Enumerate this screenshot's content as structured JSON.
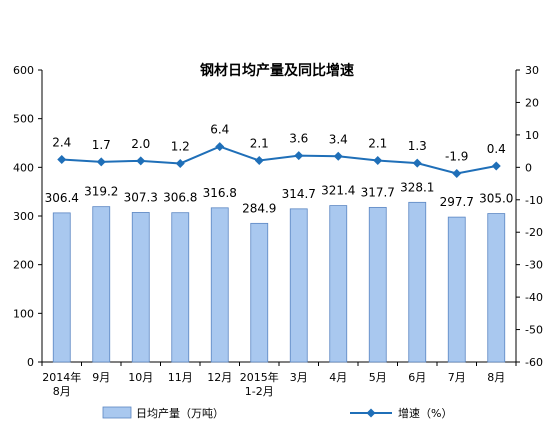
{
  "chart_data": {
    "type": "bar",
    "title": "钢材日均产量及同比增速",
    "categories": [
      [
        "2014年",
        "8月"
      ],
      [
        "9月"
      ],
      [
        "10月"
      ],
      [
        "11月"
      ],
      [
        "12月"
      ],
      [
        "2015年",
        "1-2月"
      ],
      [
        "3月"
      ],
      [
        "4月"
      ],
      [
        "5月"
      ],
      [
        "6月"
      ],
      [
        "7月"
      ],
      [
        "8月"
      ]
    ],
    "series": [
      {
        "name": "日均产量（万吨）",
        "type": "bar",
        "axis": "left",
        "values": [
          306.4,
          319.2,
          307.3,
          306.8,
          316.8,
          284.9,
          314.7,
          321.4,
          317.7,
          328.1,
          297.7,
          305.0
        ],
        "labels": [
          "306.4",
          "319.2",
          "307.3",
          "306.8",
          "316.8",
          "284.9",
          "314.7",
          "321.4",
          "317.7",
          "328.1",
          "297.7",
          "305.0"
        ],
        "color": "#a9c8ef"
      },
      {
        "name": "增速（%）",
        "type": "line",
        "axis": "right",
        "values": [
          2.4,
          1.7,
          2.0,
          1.2,
          6.4,
          2.1,
          3.6,
          3.4,
          2.1,
          1.3,
          -1.9,
          0.4
        ],
        "labels": [
          "2.4",
          "1.7",
          "2.0",
          "1.2",
          "6.4",
          "2.1",
          "3.6",
          "3.4",
          "2.1",
          "1.3",
          "-1.9",
          "0.4"
        ],
        "color": "#1f6fb8"
      }
    ],
    "y_left": {
      "min": 0,
      "max": 600,
      "ticks": [
        "0",
        "100",
        "200",
        "300",
        "400",
        "500",
        "600"
      ]
    },
    "y_right": {
      "min": -60,
      "max": 30,
      "ticks": [
        "-60",
        "-50",
        "-40",
        "-30",
        "-20",
        "-10",
        "0",
        "10",
        "20",
        "30"
      ]
    },
    "grid": false,
    "legend_position": "bottom"
  }
}
